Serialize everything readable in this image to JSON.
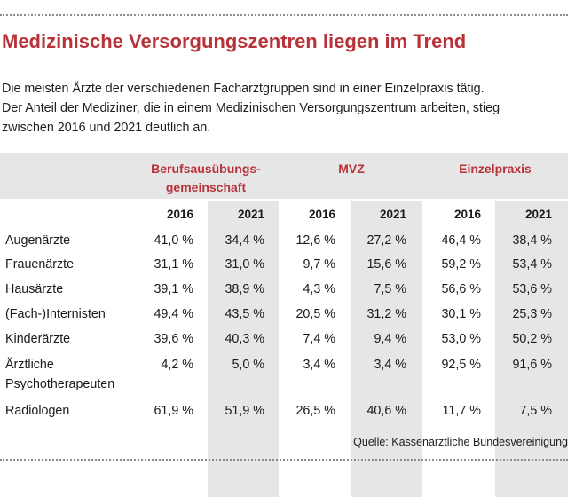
{
  "title": "Medizinische Versorgungszentren liegen im Trend",
  "intro": [
    "Die meisten Ärzte der verschiedenen Facharztgruppen sind in einer Einzelpraxis tätig.",
    "Der Anteil der Mediziner, die in einem Medizinischen Versorgungszentrum arbeiten, stieg",
    "zwischen 2016 und 2021 deutlich an."
  ],
  "columns": {
    "groups": [
      "Berufsausübungs-\ngemeinschaft",
      "MVZ",
      "Einzelpraxis"
    ],
    "years": [
      "2016",
      "2021",
      "2016",
      "2021",
      "2016",
      "2021"
    ]
  },
  "rows": [
    {
      "label": "Augenärzte",
      "values": [
        "41,0 %",
        "34,4 %",
        "12,6 %",
        "27,2 %",
        "46,4 %",
        "38,4 %"
      ]
    },
    {
      "label": "Frauenärzte",
      "values": [
        "31,1 %",
        "31,0 %",
        "9,7 %",
        "15,6 %",
        "59,2 %",
        "53,4 %"
      ]
    },
    {
      "label": "Hausärzte",
      "values": [
        "39,1 %",
        "38,9 %",
        "4,3 %",
        "7,5 %",
        "56,6 %",
        "53,6 %"
      ]
    },
    {
      "label": "(Fach-)Internisten",
      "values": [
        "49,4 %",
        "43,5 %",
        "20,5 %",
        "31,2 %",
        "30,1 %",
        "25,3 %"
      ]
    },
    {
      "label": "Kinderärzte",
      "values": [
        "39,6 %",
        "40,3 %",
        "7,4 %",
        "9,4 %",
        "53,0 %",
        "50,2 %"
      ]
    },
    {
      "label": "Ärztliche\nPsychotherapeuten",
      "values": [
        "4,2 %",
        "5,0 %",
        "3,4 %",
        "3,4 %",
        "92,5 %",
        "91,6 %"
      ]
    },
    {
      "label": "Radiologen",
      "values": [
        "61,9 %",
        "51,9 %",
        "26,5 %",
        "40,6 %",
        "11,7 %",
        "7,5 %"
      ]
    }
  ],
  "source": "Quelle: Kassenärztliche Bundesvereinigung",
  "colors": {
    "accent": "#b8323a",
    "shade": "#e6e6e6"
  }
}
